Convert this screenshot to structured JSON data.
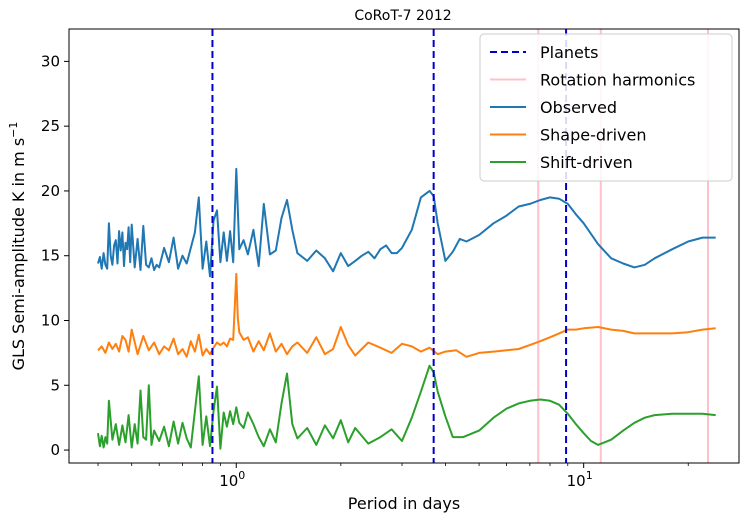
{
  "chart_data": {
    "type": "line",
    "title": "CoRoT-7 2012",
    "xlabel": "Period in days",
    "ylabel": "GLS Semi-amplitude K in m s",
    "ylabel_sup": "−1",
    "xscale": "log",
    "xlim": [
      0.33,
      28
    ],
    "ylim": [
      -1,
      32.5
    ],
    "xticks": [
      {
        "value": 1,
        "base": "10",
        "exp": "0"
      },
      {
        "value": 10,
        "base": "10",
        "exp": "1"
      }
    ],
    "yticks": [
      0,
      5,
      10,
      15,
      20,
      25,
      30
    ],
    "grid": false,
    "legend_position": "top-right",
    "vlines": {
      "planets": {
        "name": "Planets",
        "color": "#0000cc",
        "style": "dashed",
        "x": [
          0.854,
          3.7,
          8.9
        ]
      },
      "rotation": {
        "name": "Rotation harmonics",
        "color": "#ffc0cb",
        "style": "solid",
        "x": [
          7.4,
          11.2,
          22.8
        ]
      }
    },
    "series": [
      {
        "name": "Observed",
        "color": "#1f77b4",
        "x": [
          0.4,
          0.405,
          0.41,
          0.415,
          0.42,
          0.425,
          0.43,
          0.435,
          0.44,
          0.445,
          0.45,
          0.455,
          0.46,
          0.465,
          0.47,
          0.475,
          0.48,
          0.485,
          0.49,
          0.495,
          0.5,
          0.51,
          0.52,
          0.53,
          0.54,
          0.55,
          0.56,
          0.57,
          0.58,
          0.59,
          0.6,
          0.62,
          0.64,
          0.66,
          0.68,
          0.7,
          0.72,
          0.74,
          0.76,
          0.78,
          0.8,
          0.82,
          0.84,
          0.86,
          0.88,
          0.9,
          0.92,
          0.94,
          0.96,
          0.98,
          1.0,
          1.02,
          1.05,
          1.08,
          1.12,
          1.16,
          1.2,
          1.25,
          1.3,
          1.35,
          1.4,
          1.45,
          1.5,
          1.6,
          1.7,
          1.8,
          1.9,
          2.0,
          2.1,
          2.2,
          2.3,
          2.4,
          2.5,
          2.6,
          2.7,
          2.8,
          2.9,
          3.0,
          3.2,
          3.4,
          3.6,
          3.7,
          3.8,
          4.0,
          4.2,
          4.4,
          4.6,
          5.0,
          5.5,
          6.0,
          6.5,
          7.0,
          7.5,
          8.0,
          8.5,
          9.0,
          9.5,
          10.0,
          11.0,
          12.0,
          13.0,
          14.0,
          15.0,
          16.0,
          18.0,
          20.0,
          22.0,
          24.0
        ],
        "values": [
          14.4,
          14.9,
          14.0,
          15.2,
          14.3,
          14.0,
          17.5,
          15.0,
          14.3,
          15.8,
          16.2,
          14.4,
          16.9,
          15.4,
          16.8,
          14.2,
          16.0,
          15.5,
          17.2,
          14.5,
          17.4,
          14.1,
          16.3,
          13.9,
          17.3,
          14.3,
          14.1,
          14.8,
          13.9,
          14.3,
          14.1,
          15.6,
          14.5,
          16.4,
          14.0,
          15.0,
          14.4,
          15.6,
          16.8,
          19.5,
          14.0,
          16.1,
          13.4,
          17.7,
          18.5,
          14.5,
          16.8,
          14.6,
          16.9,
          14.5,
          21.7,
          15.5,
          16.2,
          15.1,
          17.0,
          14.2,
          19.0,
          15.1,
          15.4,
          17.9,
          19.3,
          17.0,
          15.2,
          14.6,
          15.4,
          14.8,
          13.8,
          15.2,
          14.2,
          14.6,
          15.0,
          15.3,
          14.8,
          15.5,
          15.8,
          15.2,
          15.2,
          15.6,
          17.0,
          19.5,
          20.0,
          19.6,
          17.5,
          14.6,
          15.3,
          16.3,
          16.1,
          16.6,
          17.5,
          18.1,
          18.8,
          19.0,
          19.3,
          19.5,
          19.4,
          19.0,
          18.2,
          17.5,
          15.9,
          14.8,
          14.4,
          14.1,
          14.3,
          14.8,
          15.5,
          16.1,
          16.4,
          16.4
        ]
      },
      {
        "name": "Shape-driven",
        "color": "#ff7f0e",
        "x": [
          0.4,
          0.41,
          0.42,
          0.43,
          0.44,
          0.45,
          0.46,
          0.47,
          0.48,
          0.49,
          0.5,
          0.52,
          0.54,
          0.56,
          0.58,
          0.6,
          0.62,
          0.64,
          0.66,
          0.68,
          0.7,
          0.72,
          0.74,
          0.76,
          0.78,
          0.8,
          0.82,
          0.84,
          0.86,
          0.88,
          0.9,
          0.92,
          0.94,
          0.96,
          0.98,
          1.0,
          1.01,
          1.02,
          1.05,
          1.08,
          1.12,
          1.16,
          1.2,
          1.25,
          1.3,
          1.35,
          1.4,
          1.45,
          1.5,
          1.6,
          1.7,
          1.8,
          1.9,
          2.0,
          2.1,
          2.2,
          2.4,
          2.6,
          2.8,
          3.0,
          3.2,
          3.4,
          3.6,
          3.8,
          4.0,
          4.3,
          4.6,
          5.0,
          5.5,
          6.0,
          6.5,
          7.0,
          7.5,
          8.0,
          8.5,
          9.0,
          9.5,
          10.0,
          11.0,
          12.0,
          13.0,
          14.0,
          16.0,
          18.0,
          20.0,
          22.0,
          24.0
        ],
        "values": [
          7.7,
          8.0,
          7.5,
          8.3,
          7.8,
          8.2,
          7.6,
          8.8,
          8.5,
          7.6,
          9.3,
          7.4,
          8.8,
          7.7,
          8.3,
          7.4,
          8.0,
          7.7,
          8.6,
          7.4,
          7.8,
          7.2,
          8.4,
          7.6,
          8.9,
          7.3,
          7.8,
          7.4,
          7.9,
          8.3,
          8.1,
          8.3,
          8.0,
          8.6,
          8.5,
          13.6,
          10.2,
          9.1,
          8.5,
          8.7,
          7.6,
          8.4,
          7.7,
          9.0,
          7.6,
          8.2,
          7.4,
          8.0,
          8.3,
          7.5,
          8.7,
          7.4,
          7.8,
          9.5,
          8.1,
          7.3,
          8.3,
          7.9,
          7.5,
          8.2,
          8.0,
          7.6,
          7.9,
          7.4,
          7.6,
          7.7,
          7.2,
          7.5,
          7.6,
          7.7,
          7.8,
          8.1,
          8.4,
          8.7,
          9.0,
          9.3,
          9.3,
          9.4,
          9.5,
          9.3,
          9.2,
          9.0,
          9.0,
          9.0,
          9.1,
          9.3,
          9.4
        ]
      },
      {
        "name": "Shift-driven",
        "color": "#2ca02c",
        "x": [
          0.4,
          0.405,
          0.41,
          0.415,
          0.42,
          0.425,
          0.43,
          0.44,
          0.45,
          0.46,
          0.47,
          0.48,
          0.49,
          0.5,
          0.51,
          0.52,
          0.53,
          0.54,
          0.55,
          0.56,
          0.57,
          0.58,
          0.6,
          0.62,
          0.64,
          0.66,
          0.68,
          0.7,
          0.72,
          0.74,
          0.76,
          0.78,
          0.8,
          0.82,
          0.84,
          0.86,
          0.88,
          0.9,
          0.92,
          0.94,
          0.96,
          0.98,
          1.0,
          1.02,
          1.05,
          1.08,
          1.12,
          1.16,
          1.2,
          1.25,
          1.3,
          1.35,
          1.4,
          1.45,
          1.5,
          1.6,
          1.7,
          1.8,
          1.9,
          2.0,
          2.1,
          2.2,
          2.4,
          2.6,
          2.8,
          3.0,
          3.2,
          3.4,
          3.6,
          3.7,
          3.8,
          4.0,
          4.2,
          4.5,
          5.0,
          5.5,
          6.0,
          6.5,
          7.0,
          7.5,
          8.0,
          8.5,
          9.0,
          9.5,
          10.0,
          10.5,
          11.0,
          12.0,
          13.0,
          14.0,
          15.0,
          16.0,
          18.0,
          20.0,
          22.0,
          24.0
        ],
        "values": [
          1.3,
          0.3,
          1.1,
          0.2,
          1.0,
          0.5,
          3.8,
          0.8,
          2.0,
          0.4,
          1.9,
          0.6,
          2.7,
          0.2,
          2.0,
          0.5,
          4.6,
          1.0,
          0.8,
          5.0,
          0.4,
          1.5,
          0.7,
          1.8,
          0.3,
          2.2,
          0.5,
          2.1,
          0.9,
          0.2,
          3.0,
          5.7,
          0.4,
          2.6,
          0.3,
          3.0,
          4.9,
          0.1,
          2.9,
          1.8,
          3.0,
          2.0,
          3.3,
          2.1,
          1.7,
          2.9,
          2.0,
          1.0,
          0.3,
          1.6,
          0.6,
          3.6,
          5.9,
          2.0,
          0.9,
          1.7,
          0.4,
          1.9,
          0.9,
          2.3,
          0.6,
          1.7,
          0.5,
          1.0,
          1.6,
          0.7,
          2.5,
          4.5,
          6.5,
          6.0,
          4.5,
          2.6,
          1.0,
          1.0,
          1.5,
          2.5,
          3.2,
          3.6,
          3.8,
          3.9,
          3.8,
          3.5,
          2.8,
          2.0,
          1.3,
          0.7,
          0.4,
          0.8,
          1.5,
          2.1,
          2.5,
          2.7,
          2.8,
          2.8,
          2.8,
          2.7
        ]
      }
    ]
  }
}
